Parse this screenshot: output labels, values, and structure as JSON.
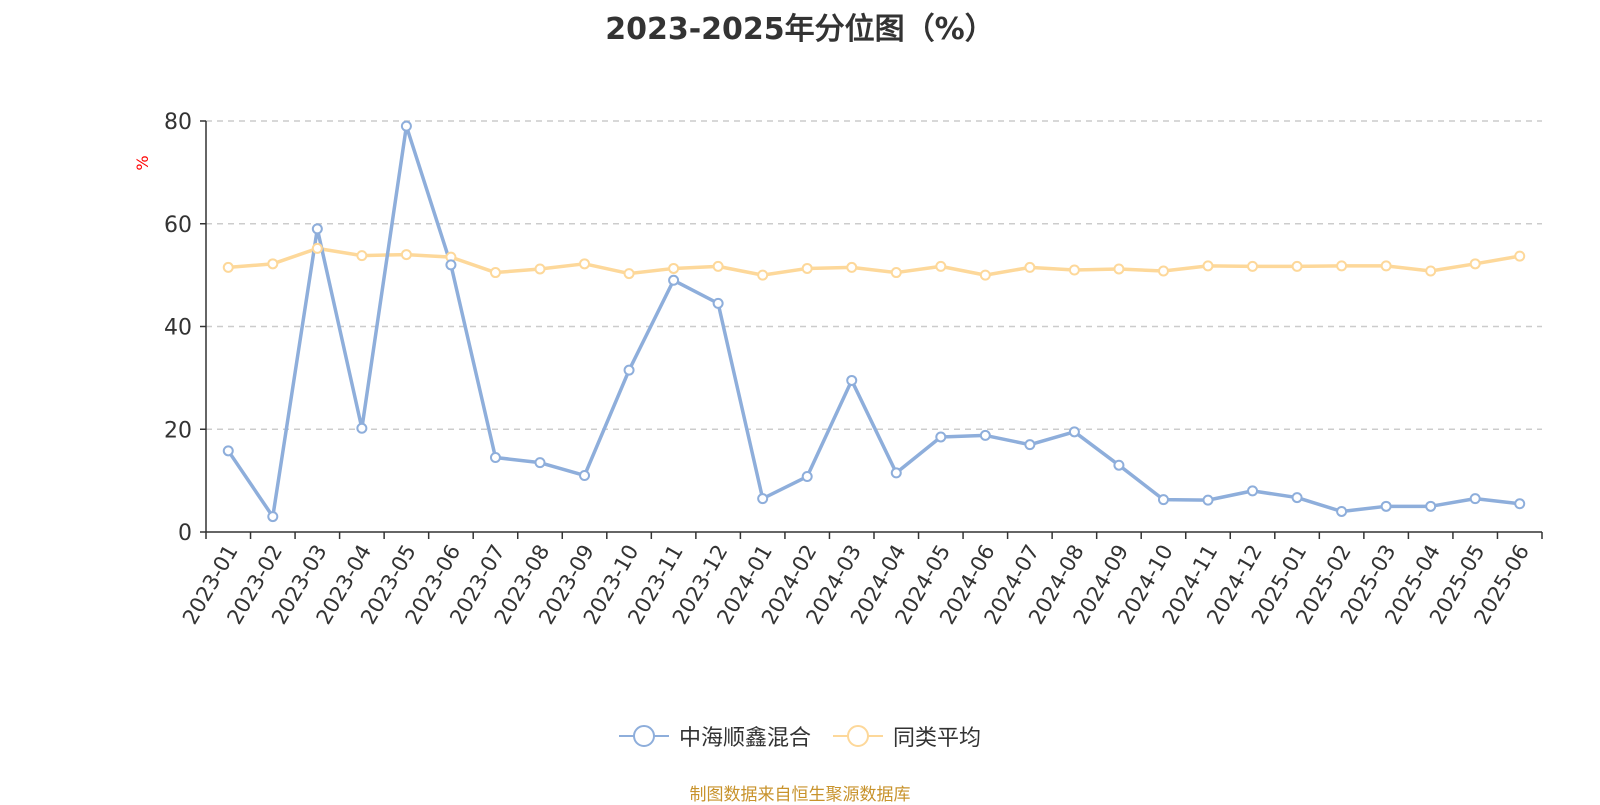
{
  "chart_data": {
    "type": "line",
    "title": "2023-2025年分位图（%）",
    "ylabel": "%",
    "ylim": [
      0,
      80
    ],
    "yticks": [
      0,
      20,
      40,
      60,
      80
    ],
    "grid": true,
    "legend_position": "bottom",
    "categories": [
      "2023-01",
      "2023-02",
      "2023-03",
      "2023-04",
      "2023-05",
      "2023-06",
      "2023-07",
      "2023-08",
      "2023-09",
      "2023-10",
      "2023-11",
      "2023-12",
      "2024-01",
      "2024-02",
      "2024-03",
      "2024-04",
      "2024-05",
      "2024-06",
      "2024-07",
      "2024-08",
      "2024-09",
      "2024-10",
      "2024-11",
      "2024-12",
      "2025-01",
      "2025-02",
      "2025-03",
      "2025-04",
      "2025-05",
      "2025-06"
    ],
    "series": [
      {
        "name": "中海顺鑫混合",
        "color": "#8eaedb",
        "values": [
          15.8,
          3.0,
          59.0,
          20.2,
          79.0,
          52.0,
          14.5,
          13.5,
          11.0,
          31.5,
          49.0,
          44.5,
          6.5,
          10.8,
          29.5,
          11.5,
          18.5,
          18.8,
          17.0,
          19.5,
          13.0,
          6.3,
          6.2,
          8.0,
          6.7,
          4.0,
          5.0,
          5.0,
          6.5,
          5.5
        ]
      },
      {
        "name": "同类平均",
        "color": "#fdd89a",
        "values": [
          51.5,
          52.2,
          55.2,
          53.8,
          54.0,
          53.5,
          50.5,
          51.2,
          52.2,
          50.3,
          51.3,
          51.7,
          50.0,
          51.3,
          51.5,
          50.5,
          51.7,
          50.0,
          51.5,
          51.0,
          51.2,
          50.8,
          51.8,
          51.7,
          51.7,
          51.8,
          51.8,
          50.8,
          52.2,
          53.7
        ]
      }
    ]
  },
  "source_note": "制图数据来自恒生聚源数据库"
}
